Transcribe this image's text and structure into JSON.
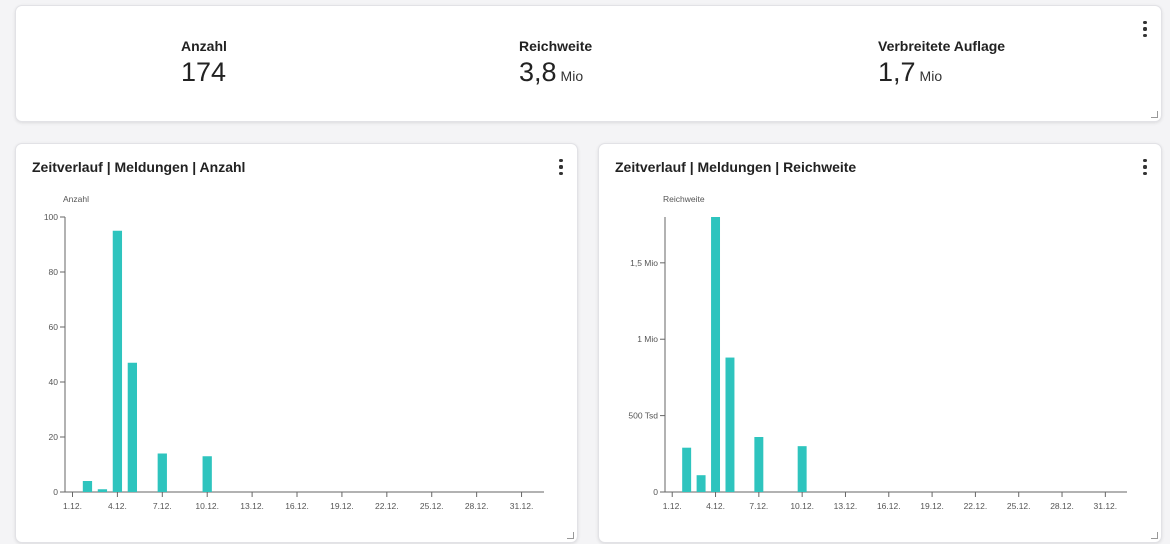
{
  "kpis": [
    {
      "label": "Anzahl",
      "value": "174",
      "unit": ""
    },
    {
      "label": "Reichweite",
      "value": "3,8",
      "unit": "Mio"
    },
    {
      "label": "Verbreitete Auflage",
      "value": "1,7",
      "unit": "Mio"
    }
  ],
  "colors": {
    "bar": "#2ec4be",
    "axis": "#666666",
    "text": "#555555"
  },
  "icons": {
    "menu": "more-vert-icon",
    "resize": "resize-grip-icon"
  },
  "chart_data": [
    {
      "type": "bar",
      "title": "Zeitverlauf | Meldungen | Anzahl",
      "ylabel": "Anzahl",
      "xlabel": "",
      "ylim": [
        0,
        100
      ],
      "yticks": [
        {
          "v": 0,
          "label": "0"
        },
        {
          "v": 20,
          "label": "20"
        },
        {
          "v": 40,
          "label": "40"
        },
        {
          "v": 60,
          "label": "60"
        },
        {
          "v": 80,
          "label": "80"
        },
        {
          "v": 100,
          "label": "100"
        }
      ],
      "xlim": [
        1,
        32
      ],
      "xticks": [
        "1.12.",
        "4.12.",
        "7.12.",
        "10.12.",
        "13.12.",
        "16.12.",
        "19.12.",
        "22.12.",
        "25.12.",
        "28.12.",
        "31.12."
      ],
      "bars": [
        {
          "day": 2,
          "value": 4
        },
        {
          "day": 3,
          "value": 1
        },
        {
          "day": 4,
          "value": 95
        },
        {
          "day": 5,
          "value": 47
        },
        {
          "day": 7,
          "value": 14
        },
        {
          "day": 10,
          "value": 13
        }
      ]
    },
    {
      "type": "bar",
      "title": "Zeitverlauf | Meldungen | Reichweite",
      "ylabel": "Reichweite",
      "xlabel": "",
      "ylim": [
        0,
        1800000
      ],
      "yticks": [
        {
          "v": 0,
          "label": "0"
        },
        {
          "v": 500000,
          "label": "500 Tsd"
        },
        {
          "v": 1000000,
          "label": "1 Mio"
        },
        {
          "v": 1500000,
          "label": "1,5 Mio"
        }
      ],
      "xlim": [
        1,
        32
      ],
      "xticks": [
        "1.12.",
        "4.12.",
        "7.12.",
        "10.12.",
        "13.12.",
        "16.12.",
        "19.12.",
        "22.12.",
        "25.12.",
        "28.12.",
        "31.12."
      ],
      "bars": [
        {
          "day": 2,
          "value": 290000
        },
        {
          "day": 3,
          "value": 110000
        },
        {
          "day": 4,
          "value": 1800000
        },
        {
          "day": 5,
          "value": 880000
        },
        {
          "day": 7,
          "value": 360000
        },
        {
          "day": 10,
          "value": 300000
        }
      ]
    }
  ]
}
